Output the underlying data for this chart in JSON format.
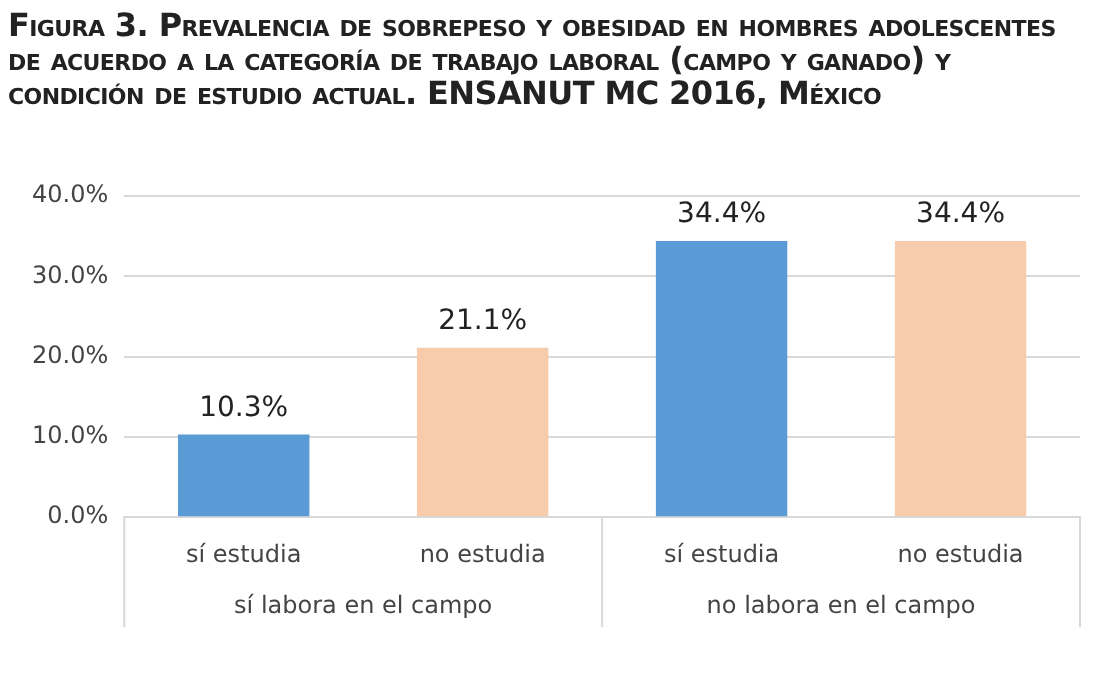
{
  "chart_data": {
    "type": "bar",
    "title": "Figura 3. Prevalencia de sobrepeso y obesidad en hombres adolescentes de acuerdo a la categoría de trabajo laboral (campo y ganado) y condición de estudio actual. ENSANUT MC 2016, México",
    "categories": [
      "sí estudia",
      "no estudia",
      "sí estudia",
      "no estudia"
    ],
    "values": [
      10.3,
      21.1,
      34.4,
      34.4
    ],
    "colors": [
      "#5b9bd5",
      "#f8cbad",
      "#5b9bd5",
      "#f8cbad"
    ],
    "value_labels": [
      "10.3%",
      "21.1%",
      "34.4%",
      "34.4%"
    ],
    "ylim": [
      0,
      40
    ],
    "yticks": [
      {
        "value": 0,
        "label": "0.0%"
      },
      {
        "value": 10,
        "label": "10.0%"
      },
      {
        "value": 20,
        "label": "20.0%"
      },
      {
        "value": 30,
        "label": "30.0%"
      },
      {
        "value": 40,
        "label": "40.0%"
      }
    ],
    "grid": "y",
    "legend": false,
    "annotations": [
      "sí labora en el campo",
      "no labora en el campo"
    ]
  }
}
